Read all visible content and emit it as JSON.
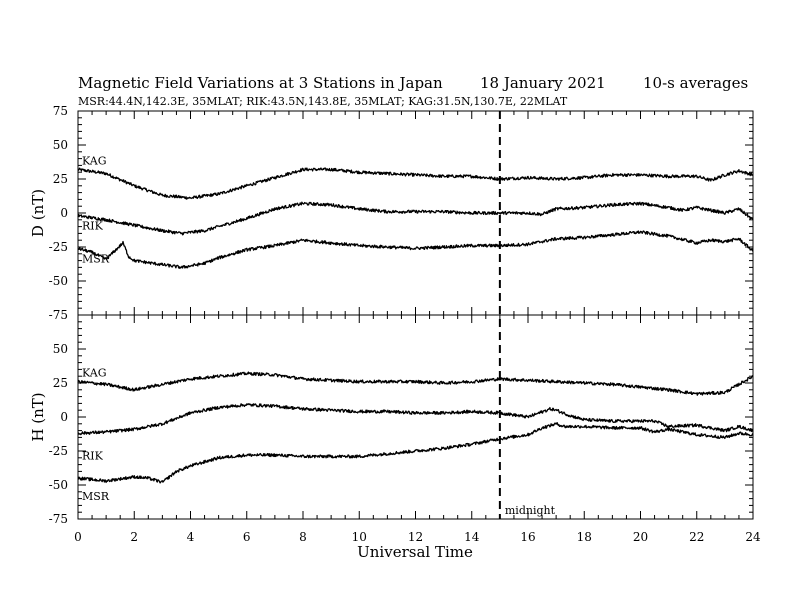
{
  "chart_data": {
    "type": "line",
    "title": "Magnetic Field Variations at 3 Stations in Japan",
    "date": "18 January  2021",
    "averaging": "10-s averages",
    "station_info": "MSR:44.4N,142.3E, 35MLAT;  RIK:43.5N,143.8E, 35MLAT;  KAG:31.5N,130.7E, 22MLAT",
    "xlabel": "Universal Time",
    "xlim": [
      0,
      24
    ],
    "xticks": [
      0,
      2,
      4,
      6,
      8,
      10,
      12,
      14,
      16,
      18,
      20,
      22,
      24
    ],
    "marker": {
      "x": 15,
      "label": "midnight"
    },
    "panels": [
      {
        "ylabel": "D (nT)",
        "ylim": [
          -75,
          75
        ],
        "yticks": [
          75,
          50,
          25,
          0,
          -25,
          -50,
          -75
        ],
        "series": [
          {
            "name": "KAG",
            "x": [
              0,
              1,
              2,
              3,
              4,
              5,
              6,
              7,
              8,
              9,
              10,
              11,
              12,
              13,
              14,
              15,
              16,
              17,
              18,
              19,
              20,
              21,
              22,
              22.5,
              23,
              23.5,
              24
            ],
            "y": [
              32,
              29,
              20,
              13,
              11,
              14,
              20,
              26,
              32,
              32,
              30,
              29,
              28,
              27,
              27,
              25,
              26,
              25,
              26,
              28,
              28,
              27,
              27,
              24,
              28,
              31,
              28
            ]
          },
          {
            "name": "RIK",
            "x": [
              0,
              1,
              2,
              3,
              3.7,
              4.5,
              5,
              6,
              7,
              8,
              9,
              10,
              11,
              12,
              13,
              14,
              15,
              16,
              16.5,
              17,
              18,
              19,
              20,
              21,
              21.5,
              22,
              23,
              23.5,
              24
            ],
            "y": [
              -2,
              -5,
              -9,
              -13,
              -15,
              -13,
              -10,
              -4,
              3,
              7,
              6,
              3,
              1,
              1,
              1,
              0,
              0,
              0,
              -1,
              3,
              4,
              6,
              7,
              4,
              2,
              4,
              0,
              3,
              -5
            ]
          },
          {
            "name": "MSR",
            "x": [
              0,
              0.5,
              1,
              1.3,
              1.6,
              1.8,
              2,
              3,
              3.7,
              4.5,
              5,
              6,
              7,
              8,
              9,
              10,
              11,
              12,
              13,
              14,
              15,
              16,
              17,
              18,
              19,
              20,
              21,
              22,
              22.5,
              23,
              23.5,
              24
            ],
            "y": [
              -26,
              -29,
              -34,
              -28,
              -22,
              -32,
              -35,
              -38,
              -40,
              -37,
              -33,
              -27,
              -24,
              -20,
              -22,
              -24,
              -25,
              -26,
              -25,
              -24,
              -24,
              -23,
              -19,
              -18,
              -16,
              -14,
              -17,
              -22,
              -20,
              -21,
              -19,
              -28
            ]
          }
        ]
      },
      {
        "ylabel": "H (nT)",
        "ylim": [
          -75,
          75
        ],
        "yticks": [
          75,
          50,
          25,
          0,
          -25,
          -50,
          -75
        ],
        "series": [
          {
            "name": "KAG",
            "x": [
              0,
              1,
              2,
              3,
              4,
              5,
              6,
              7,
              8,
              9,
              10,
              11,
              12,
              13,
              14,
              15,
              16,
              17,
              18,
              19,
              20,
              21,
              22,
              23,
              23.5,
              24
            ],
            "y": [
              26,
              24,
              20,
              24,
              28,
              30,
              32,
              31,
              28,
              27,
              26,
              26,
              26,
              25,
              26,
              28,
              27,
              26,
              25,
              24,
              22,
              20,
              17,
              18,
              24,
              30
            ]
          },
          {
            "name": "RIK",
            "x": [
              0,
              1,
              2,
              3,
              4,
              5,
              6,
              7,
              8,
              9,
              10,
              11,
              12,
              13,
              14,
              15,
              16,
              16.8,
              17,
              17.5,
              18,
              19,
              20,
              20.5,
              21,
              22,
              23,
              23.5,
              24
            ],
            "y": [
              -12,
              -11,
              -9,
              -5,
              3,
              7,
              9,
              8,
              6,
              5,
              4,
              4,
              3,
              3,
              4,
              3,
              0,
              6,
              5,
              1,
              -2,
              -3,
              -3,
              -3,
              -7,
              -6,
              -10,
              -7,
              -10
            ]
          },
          {
            "name": "MSR",
            "x": [
              0,
              1,
              2,
              2.5,
              3,
              3.5,
              4,
              5,
              6,
              7,
              8,
              9,
              10,
              11,
              12,
              13,
              14,
              15,
              16,
              16.5,
              17,
              17.3,
              18,
              19,
              20,
              20.5,
              21,
              22,
              23,
              23.5,
              24
            ],
            "y": [
              -45,
              -47,
              -44,
              -45,
              -48,
              -40,
              -36,
              -30,
              -28,
              -28,
              -29,
              -29,
              -29,
              -27,
              -25,
              -23,
              -20,
              -16,
              -13,
              -8,
              -5,
              -7,
              -7,
              -8,
              -8,
              -11,
              -9,
              -13,
              -15,
              -12,
              -13
            ]
          }
        ]
      }
    ]
  }
}
